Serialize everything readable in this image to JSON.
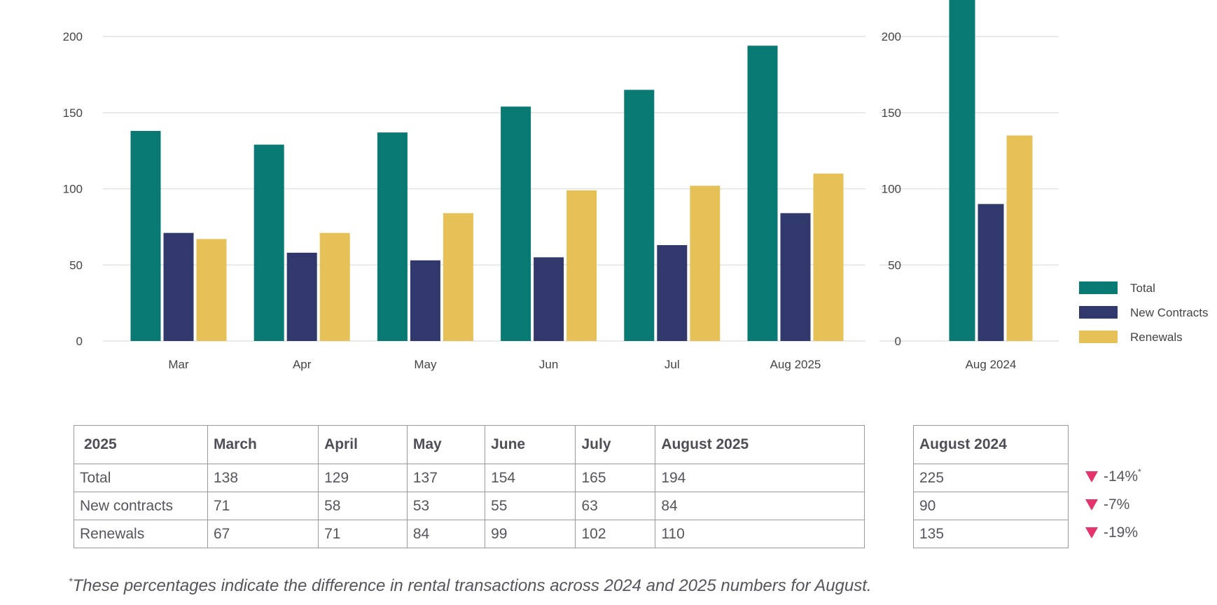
{
  "colors": {
    "total": "#087a73",
    "new": "#31386c",
    "renewals": "#e5c158",
    "decrease": "#e5336b",
    "grid": "#e4e4e4"
  },
  "chart_data": [
    {
      "type": "bar",
      "categories": [
        "Mar",
        "Apr",
        "May",
        "Jun",
        "Jul",
        "Aug 2025"
      ],
      "series": [
        {
          "name": "Total",
          "values": [
            138,
            129,
            137,
            154,
            165,
            194
          ]
        },
        {
          "name": "New Contracts",
          "values": [
            71,
            58,
            53,
            55,
            63,
            84
          ]
        },
        {
          "name": "Renewals",
          "values": [
            67,
            71,
            84,
            99,
            102,
            110
          ]
        }
      ],
      "yticks": [
        0,
        50,
        100,
        150,
        200
      ],
      "ylim": [
        0,
        225
      ],
      "grid": true
    },
    {
      "type": "bar",
      "categories": [
        "Aug 2024"
      ],
      "series": [
        {
          "name": "Total",
          "values": [
            225
          ]
        },
        {
          "name": "New Contracts",
          "values": [
            90
          ]
        },
        {
          "name": "Renewals",
          "values": [
            135
          ]
        }
      ],
      "yticks": [
        0,
        50,
        100,
        150,
        200
      ],
      "ylim": [
        0,
        225
      ],
      "grid": true,
      "legend": "right"
    }
  ],
  "table": {
    "corner": "2025",
    "months": [
      "March",
      "April",
      "May",
      "June",
      "July",
      "August 2025"
    ],
    "rows": [
      {
        "label": "Total",
        "values": [
          "138",
          "129",
          "137",
          "154",
          "165",
          "194"
        ]
      },
      {
        "label": "New contracts",
        "values": [
          "71",
          "58",
          "53",
          "55",
          "63",
          "84"
        ]
      },
      {
        "label": "Renewals",
        "values": [
          "67",
          "71",
          "84",
          "99",
          "102",
          "110"
        ]
      }
    ]
  },
  "side_table": {
    "header": "August 2024",
    "values": [
      "225",
      "90",
      "135"
    ]
  },
  "changes": [
    {
      "value": "-14%",
      "mark": "*"
    },
    {
      "value": "-7%",
      "mark": ""
    },
    {
      "value": "-19%",
      "mark": ""
    }
  ],
  "footnote": {
    "mark": "*",
    "text": "These percentages indicate the difference in rental transactions across 2024 and 2025 numbers for August."
  }
}
